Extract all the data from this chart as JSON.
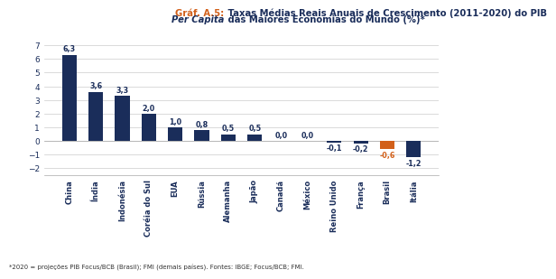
{
  "categories": [
    "China",
    "Índia",
    "Indonésia",
    "Coréia do Sul",
    "EUA",
    "Rússia",
    "Alemanha",
    "Japão",
    "Canadá",
    "México",
    "Reino Unido",
    "França",
    "Brasil",
    "Itália"
  ],
  "values": [
    6.3,
    3.6,
    3.3,
    2.0,
    1.0,
    0.8,
    0.5,
    0.5,
    0.0,
    0.0,
    -0.1,
    -0.2,
    -0.6,
    -1.2
  ],
  "bar_colors": [
    "#1a2d5a",
    "#1a2d5a",
    "#1a2d5a",
    "#1a2d5a",
    "#1a2d5a",
    "#1a2d5a",
    "#1a2d5a",
    "#1a2d5a",
    "#1a2d5a",
    "#1a2d5a",
    "#1a2d5a",
    "#1a2d5a",
    "#d2601a",
    "#1a2d5a"
  ],
  "title_prefix": "Gráf. A.5:",
  "title_prefix_color": "#d2601a",
  "title_main": " Taxas Médias Reais Anuais de Crescimento (2011-2020) do PIB",
  "title_line2_italic": "Per Capita",
  "title_line2_rest": " das Maiores Economias do Mundo (%)*",
  "title_color": "#1a2d5a",
  "ylim": [
    -2.5,
    7.5
  ],
  "yticks": [
    -2,
    -1,
    0,
    1,
    2,
    3,
    4,
    5,
    6,
    7
  ],
  "footnote": "*2020 = projeções PIB Focus/BCB (Brasil); FMI (demais países). Fontes: IBGE; Focus/BCB; FMI.",
  "label_fontsize": 6.0,
  "value_fontsize": 5.8,
  "title_fontsize": 7.2,
  "background_color": "#ffffff"
}
